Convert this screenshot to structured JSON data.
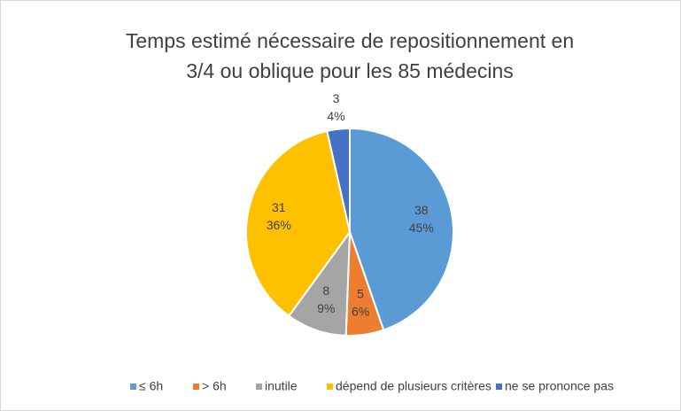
{
  "chart_data": {
    "type": "pie",
    "title": [
      "Temps estimé nécessaire de repositionnement en",
      "3/4 ou oblique pour les 85 médecins"
    ],
    "categories": [
      "≤ 6h",
      "> 6h",
      "inutile",
      "dépend de plusieurs critères",
      "ne se prononce pas"
    ],
    "values": [
      38,
      5,
      8,
      31,
      3
    ],
    "percent_labels": [
      "45%",
      "6%",
      "9%",
      "36%",
      "4%"
    ],
    "colors": [
      "#5b9bd5",
      "#ed7d31",
      "#a5a5a5",
      "#ffc000",
      "#4472c4"
    ],
    "legend": "bottom"
  }
}
